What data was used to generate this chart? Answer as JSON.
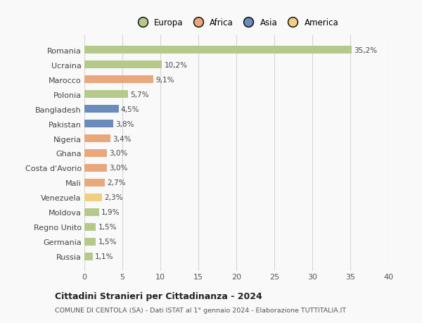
{
  "categories": [
    "Romania",
    "Ucraina",
    "Marocco",
    "Polonia",
    "Bangladesh",
    "Pakistan",
    "Nigeria",
    "Ghana",
    "Costa d'Avorio",
    "Mali",
    "Venezuela",
    "Moldova",
    "Regno Unito",
    "Germania",
    "Russia"
  ],
  "values": [
    35.2,
    10.2,
    9.1,
    5.7,
    4.5,
    3.8,
    3.4,
    3.0,
    3.0,
    2.7,
    2.3,
    1.9,
    1.5,
    1.5,
    1.1
  ],
  "labels": [
    "35,2%",
    "10,2%",
    "9,1%",
    "5,7%",
    "4,5%",
    "3,8%",
    "3,4%",
    "3,0%",
    "3,0%",
    "2,7%",
    "2,3%",
    "1,9%",
    "1,5%",
    "1,5%",
    "1,1%"
  ],
  "colors": [
    "#b5c98a",
    "#b5c98a",
    "#e8a87c",
    "#b5c98a",
    "#6b8cba",
    "#6b8cba",
    "#e8a87c",
    "#e8a87c",
    "#e8a87c",
    "#e8a87c",
    "#f0d080",
    "#b5c98a",
    "#b5c98a",
    "#b5c98a",
    "#b5c98a"
  ],
  "legend_labels": [
    "Europa",
    "Africa",
    "Asia",
    "America"
  ],
  "legend_colors": [
    "#b5c98a",
    "#e8a87c",
    "#6b8cba",
    "#f0d080"
  ],
  "xlim": [
    0,
    40
  ],
  "xticks": [
    0,
    5,
    10,
    15,
    20,
    25,
    30,
    35,
    40
  ],
  "title": "Cittadini Stranieri per Cittadinanza - 2024",
  "subtitle": "COMUNE DI CENTOLA (SA) - Dati ISTAT al 1° gennaio 2024 - Elaborazione TUTTITALIA.IT",
  "bg_color": "#f9f9f9",
  "grid_color": "#d5d5d5",
  "bar_height": 0.55
}
